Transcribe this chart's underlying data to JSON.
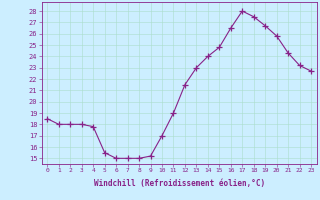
{
  "x": [
    0,
    1,
    2,
    3,
    4,
    5,
    6,
    7,
    8,
    9,
    10,
    11,
    12,
    13,
    14,
    15,
    16,
    17,
    18,
    19,
    20,
    21,
    22,
    23
  ],
  "y": [
    18.5,
    18.0,
    18.0,
    18.0,
    17.8,
    15.5,
    15.0,
    15.0,
    15.0,
    15.2,
    17.0,
    19.0,
    21.5,
    23.0,
    24.0,
    24.8,
    26.5,
    28.0,
    27.5,
    26.7,
    25.8,
    24.3,
    23.2,
    22.7
  ],
  "line_color": "#882288",
  "marker": "+",
  "marker_size": 4,
  "bg_color": "#cceeff",
  "grid_color": "#aaddcc",
  "xlabel": "Windchill (Refroidissement éolien,°C)",
  "ylabel_ticks": [
    15,
    16,
    17,
    18,
    19,
    20,
    21,
    22,
    23,
    24,
    25,
    26,
    27,
    28
  ],
  "ylim": [
    14.5,
    28.8
  ],
  "xlim": [
    -0.5,
    23.5
  ],
  "axis_label_color": "#882288",
  "tick_color": "#882288",
  "xlabel_fontsize": 5.5,
  "ytick_fontsize": 5.0,
  "xtick_fontsize": 4.5
}
